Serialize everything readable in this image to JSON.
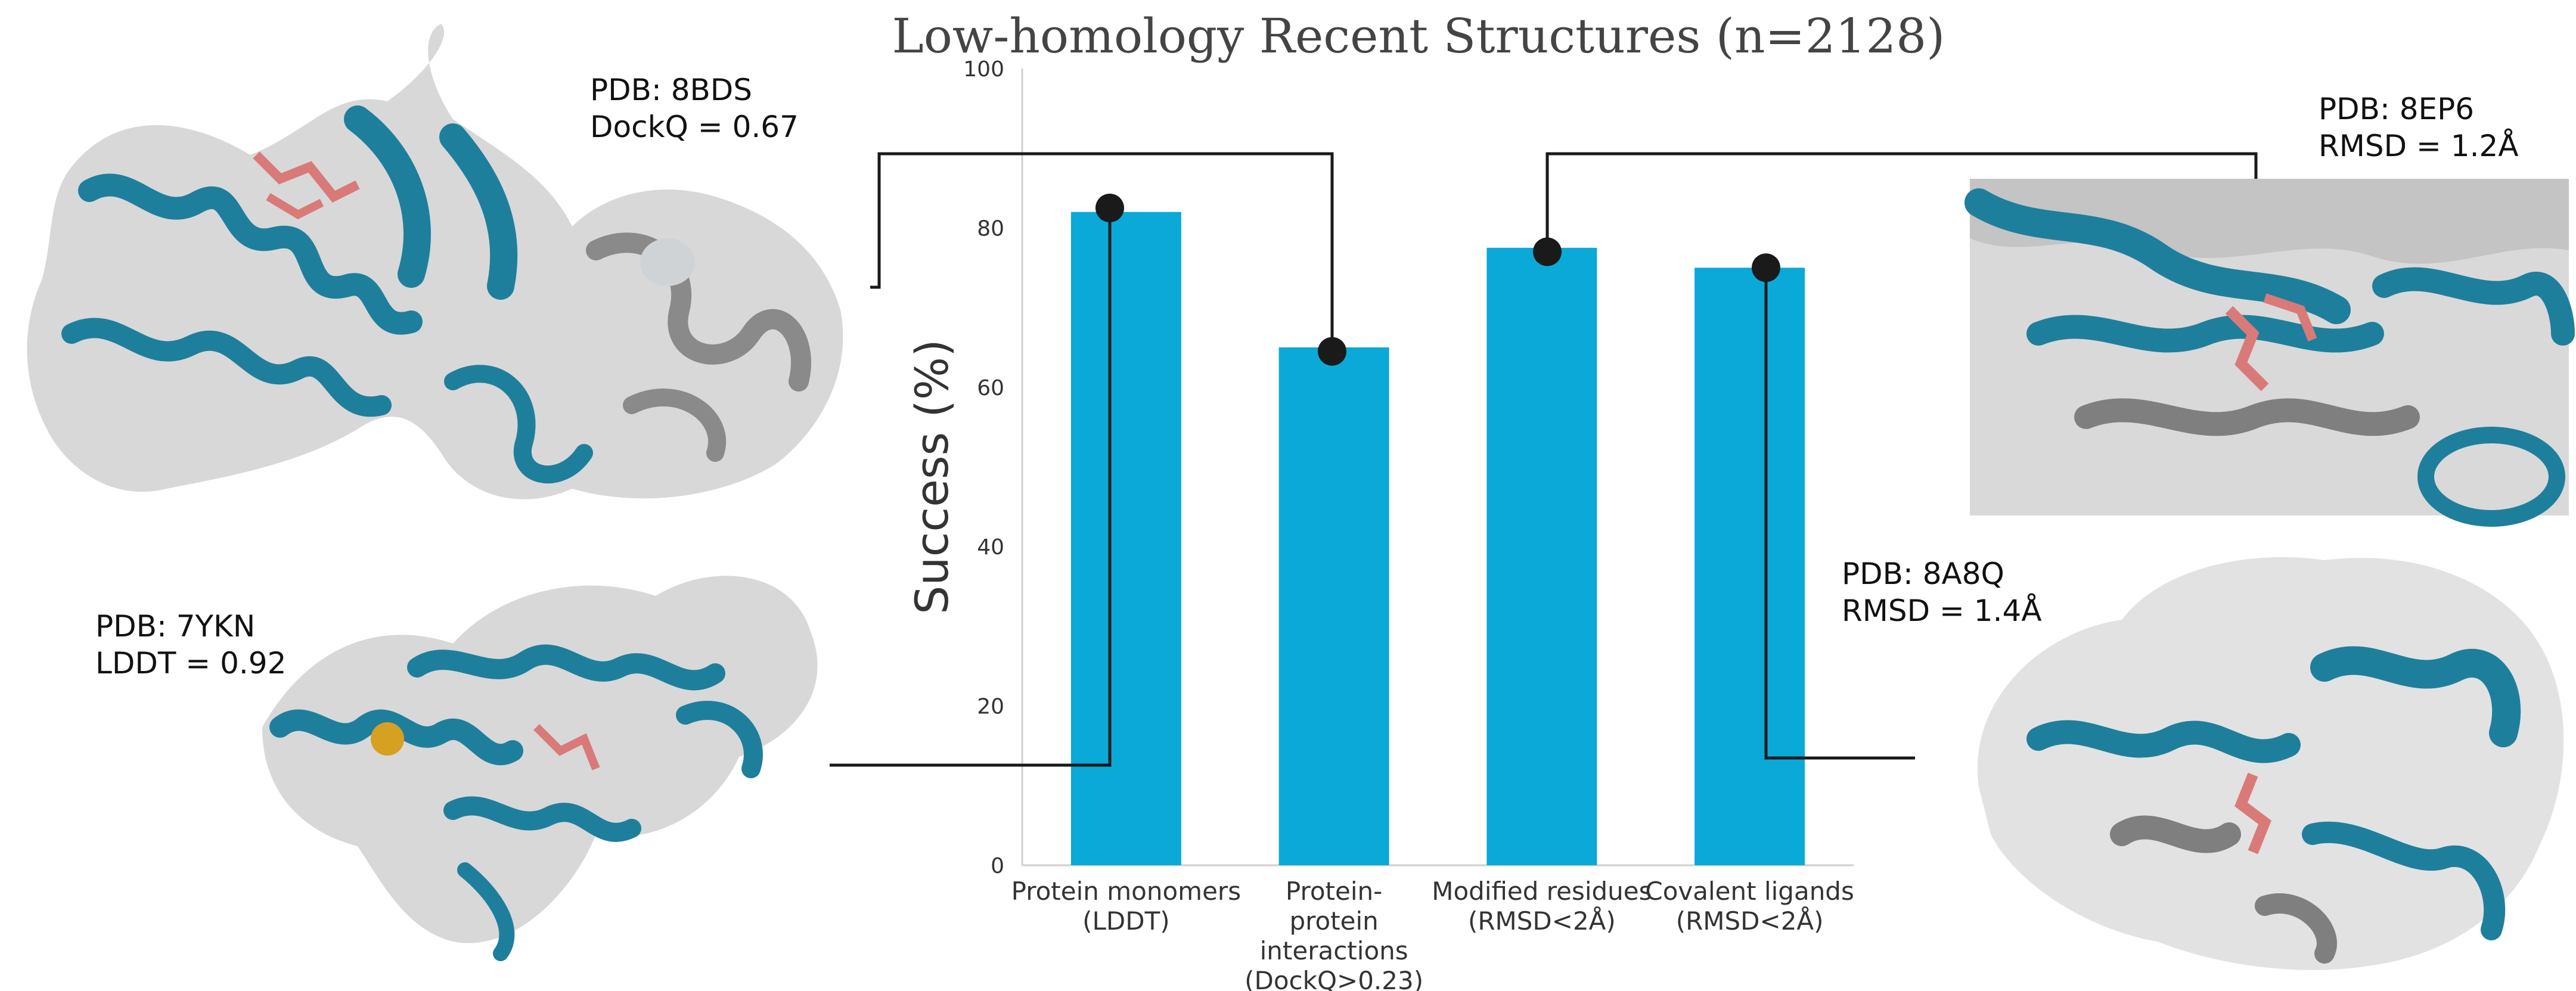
{
  "colors": {
    "bar": "#0aa9d8",
    "ribbon_teal": "#1e7f9c",
    "ribbon_grey": "#b8b8b8",
    "ligand": "#d97a78",
    "surface": "#e2e2e2",
    "connector": "#1a1a1a",
    "axis": "#cfcfcf"
  },
  "chart_data": {
    "type": "bar",
    "title": "Low-homology Recent Structures (n=2128)",
    "ylabel": "Success (%)",
    "xlabel": "",
    "ylim": [
      0,
      100
    ],
    "yticks": [
      0,
      20,
      40,
      60,
      80,
      100
    ],
    "grid": false,
    "categories": [
      "Protein monomers (LDDT)",
      "Protein-protein interactions (DockQ>0.23)",
      "Modified residues (RMSD<2Å)",
      "Covalent ligands (RMSD<2Å)"
    ],
    "category_lines": [
      [
        "Protein monomers",
        "(LDDT)"
      ],
      [
        "Protein-",
        "protein",
        "interactions",
        "(DockQ>0.23)"
      ],
      [
        "Modified residues",
        "(RMSD<2Å)"
      ],
      [
        "Covalent ligands",
        "(RMSD<2Å)"
      ]
    ],
    "values": [
      82,
      65,
      77.5,
      75
    ],
    "markers": [
      82.5,
      64.5,
      77,
      75
    ]
  },
  "examples": [
    {
      "id": "example-8bds",
      "pdb": "PDB: 8BDS",
      "metric": "DockQ = 0.67",
      "bar_index": 1
    },
    {
      "id": "example-7ykn",
      "pdb": "PDB: 7YKN",
      "metric": "LDDT = 0.92",
      "bar_index": 0
    },
    {
      "id": "example-8ep6",
      "pdb": "PDB: 8EP6",
      "metric": "RMSD = 1.2Å",
      "bar_index": 2
    },
    {
      "id": "example-8a8q",
      "pdb": "PDB: 8A8Q",
      "metric": "RMSD = 1.4Å",
      "bar_index": 3
    }
  ]
}
